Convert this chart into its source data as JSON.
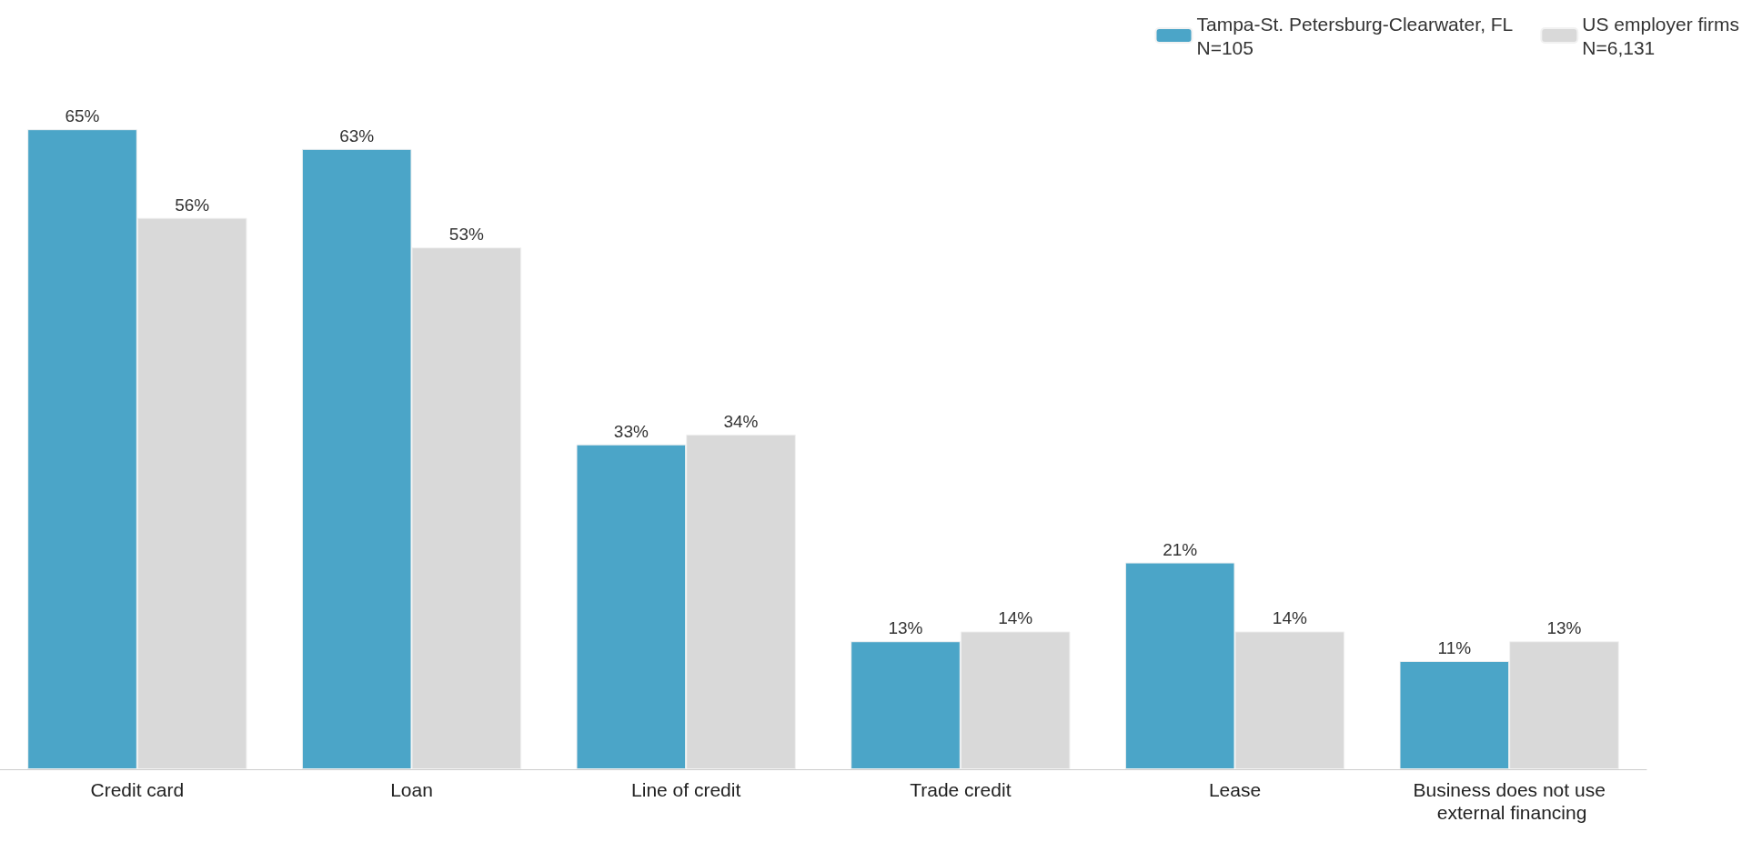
{
  "chart_data": {
    "type": "bar",
    "categories": [
      "Credit card",
      "Loan",
      "Line of credit",
      "Trade credit",
      "Lease",
      "Business does not use external financing"
    ],
    "series": [
      {
        "name": "Tampa-St. Petersburg-Clearwater, FL\nN=105",
        "color": "#4ba5c8",
        "values": [
          65,
          63,
          33,
          13,
          21,
          11
        ],
        "value_labels": [
          "65%",
          "63%",
          "33%",
          "13%",
          "21%",
          "11%"
        ]
      },
      {
        "name": "US employer firms\nN=6,131",
        "color": "#d9d9d9",
        "values": [
          56,
          53,
          34,
          14,
          14,
          13
        ],
        "value_labels": [
          "56%",
          "53%",
          "34%",
          "14%",
          "14%",
          "13%"
        ]
      }
    ],
    "tick_labels": "x",
    "legend": "top right",
    "grid": false
  }
}
